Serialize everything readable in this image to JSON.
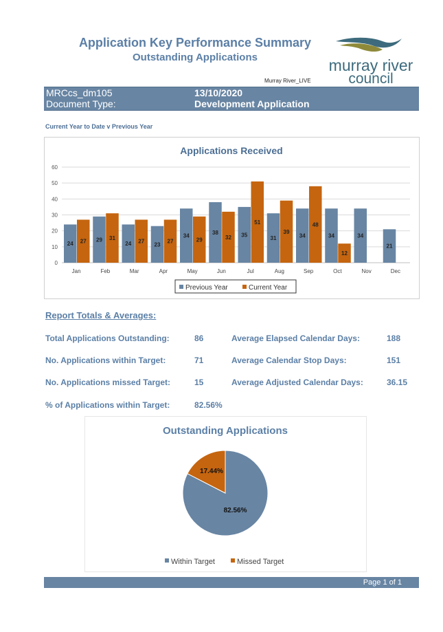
{
  "header": {
    "title": "Application Key Performance Summary",
    "subtitle": "Outstanding Applications",
    "environment": "Murray River_LIVE",
    "logo": {
      "line1": "murray river",
      "line2": "council",
      "color": "#3d6b7d"
    }
  },
  "info_bar": {
    "report_code": "MRCcs_dm105",
    "date": "13/10/2020",
    "doc_type_label": "Document Type:",
    "doc_type_value": "Development Application"
  },
  "section_note": "Current Year to Date v Previous Year",
  "report": {
    "heading": "Report Totals & Averages:",
    "stats": [
      {
        "label": "Total Applications Outstanding:",
        "value": "86"
      },
      {
        "label": "No. Applications within Target:",
        "value": "71"
      },
      {
        "label": "No. Applications missed Target:",
        "value": "15"
      },
      {
        "label": "% of Applications within Target:",
        "value": "82.56%"
      },
      {
        "label": "Average Elapsed Calendar Days:",
        "value": "188"
      },
      {
        "label": "Average Calendar Stop Days:",
        "value": "151"
      },
      {
        "label": "Average Adjusted Calendar Days:",
        "value": "36.15"
      }
    ]
  },
  "footer": {
    "page": "Page 1 of 1"
  },
  "chart_data": [
    {
      "type": "bar",
      "title": "Applications Received",
      "categories": [
        "Jan",
        "Feb",
        "Mar",
        "Apr",
        "May",
        "Jun",
        "Jul",
        "Aug",
        "Sep",
        "Oct",
        "Nov",
        "Dec"
      ],
      "series": [
        {
          "name": "Previous Year",
          "color": "#6885a3",
          "values": [
            24,
            29,
            24,
            23,
            34,
            38,
            35,
            31,
            34,
            34,
            34,
            21
          ]
        },
        {
          "name": "Current Year",
          "color": "#c5650f",
          "values": [
            27,
            31,
            27,
            27,
            29,
            32,
            51,
            39,
            48,
            12,
            null,
            null
          ]
        }
      ],
      "ylim": [
        0,
        60
      ],
      "yticks": [
        0,
        10,
        20,
        30,
        40,
        50,
        60
      ],
      "grid": true,
      "legend": "bottom"
    },
    {
      "type": "pie",
      "title": "Outstanding Applications",
      "slices": [
        {
          "name": "Within Target",
          "value": 82.56,
          "label": "82.56%",
          "color": "#6885a3"
        },
        {
          "name": "Missed Target",
          "value": 17.44,
          "label": "17.44%",
          "color": "#c5650f"
        }
      ],
      "legend": "bottom"
    }
  ]
}
